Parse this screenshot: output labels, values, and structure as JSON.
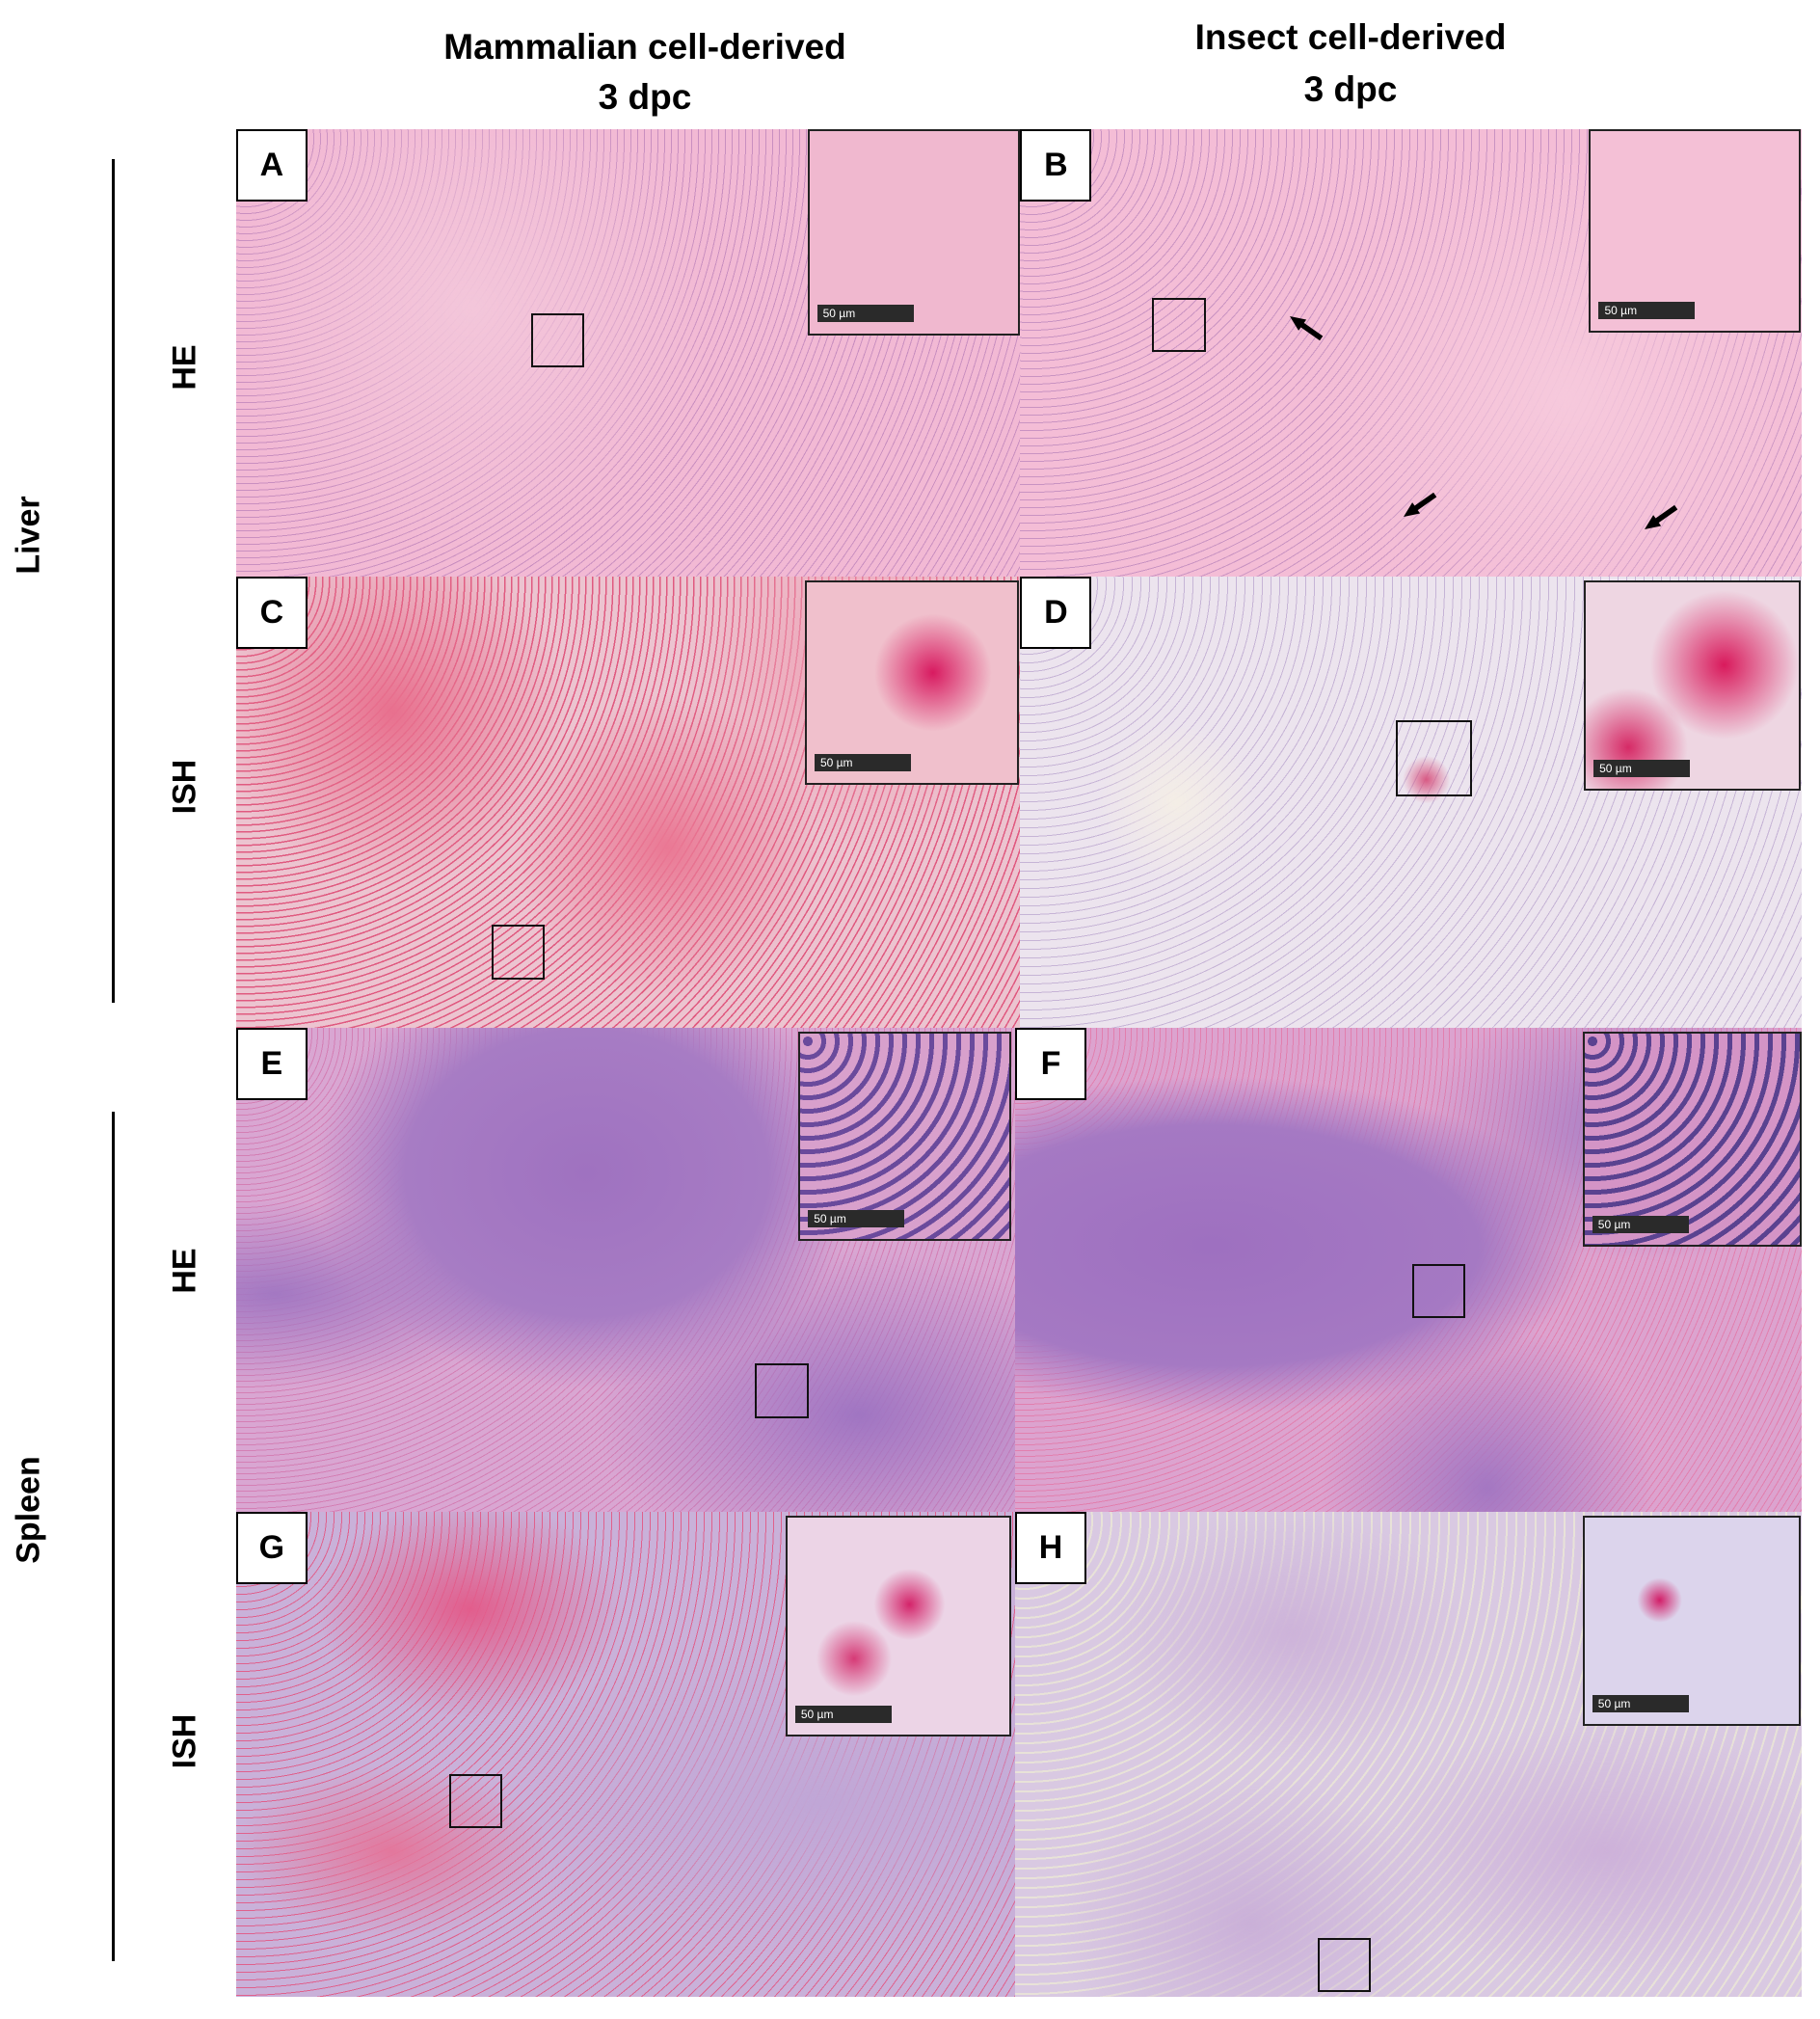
{
  "header": {
    "columns": [
      {
        "title": "Mammalian cell-derived",
        "subtitle": "3 dpc"
      },
      {
        "title": "Insect cell-derived",
        "subtitle": "3 dpc"
      }
    ]
  },
  "organs": [
    {
      "label": "Liver"
    },
    {
      "label": "Spleen"
    }
  ],
  "stains": [
    {
      "label": "HE"
    },
    {
      "label": "ISH"
    },
    {
      "label": "HE"
    },
    {
      "label": "ISH"
    }
  ],
  "panels": [
    {
      "letter": "A",
      "scale_label": "50 µm"
    },
    {
      "letter": "B",
      "scale_label": "50 µm"
    },
    {
      "letter": "C",
      "scale_label": "50 µm"
    },
    {
      "letter": "D",
      "scale_label": "50 µm"
    },
    {
      "letter": "E",
      "scale_label": "50 µm"
    },
    {
      "letter": "F",
      "scale_label": "50 µm"
    },
    {
      "letter": "G",
      "scale_label": "50 µm"
    },
    {
      "letter": "H",
      "scale_label": "50 µm"
    }
  ]
}
